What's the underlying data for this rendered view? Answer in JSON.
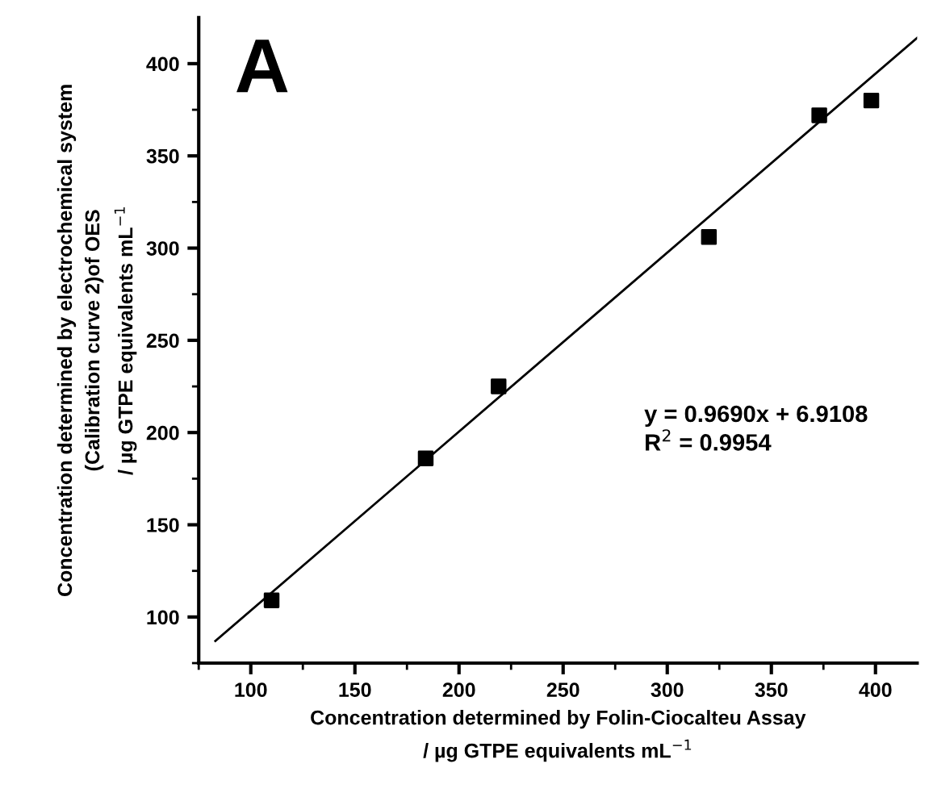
{
  "chart_data": {
    "type": "scatter",
    "xlabel": "Concentration determined by Folin-Ciocalteu Assay\n/ µg GTPE equivalents mL$^{−1}$",
    "ylabel": "Concentration determined by electrochemical system\n(Calibration curve 2)of OES\n/ µg GTPE equivalents mL$^{−1}$",
    "series": [
      {
        "color": "#000000",
        "marker": "square",
        "x": [
          110,
          184,
          219,
          320,
          373,
          398
        ],
        "values": [
          109,
          186,
          225,
          306,
          372,
          380
        ]
      },
      {
        "type": "line",
        "color": "#000000",
        "marker": "none",
        "line_style": "solid",
        "x": [
          83,
          420
        ],
        "values": [
          87,
          414
        ]
      }
    ],
    "annotations": [
      {
        "text": "A"
      },
      {
        "text": "y = 0.9690x + 6.9108\nR$^{2}$ = 0.9954"
      }
    ],
    "xlim": [
      75,
      420
    ],
    "ylim": [
      75,
      425
    ],
    "xticks": [
      100,
      150,
      200,
      250,
      300,
      350,
      400
    ],
    "yticks": [
      100,
      150,
      200,
      250,
      300,
      350,
      400
    ],
    "grid": false,
    "legend": false
  }
}
